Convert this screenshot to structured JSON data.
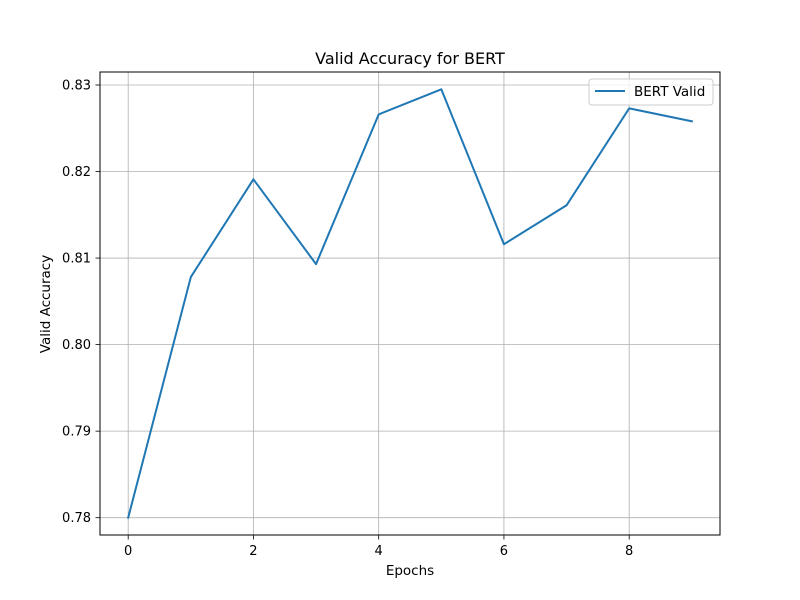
{
  "chart_data": {
    "type": "line",
    "title": "Valid Accuracy for BERT",
    "xlabel": "Epochs",
    "ylabel": "Valid Accuracy",
    "x": [
      0,
      1,
      2,
      3,
      4,
      5,
      6,
      7,
      8,
      9
    ],
    "series": [
      {
        "name": "BERT Valid",
        "color": "#1f77b4",
        "values": [
          0.78,
          0.8078,
          0.8191,
          0.8093,
          0.8266,
          0.8295,
          0.8116,
          0.8161,
          0.8273,
          0.8258
        ]
      }
    ],
    "xlim": [
      -0.45,
      9.45
    ],
    "ylim": [
      0.778,
      0.8315
    ],
    "xticks": [
      0,
      2,
      4,
      6,
      8
    ],
    "xtick_labels": [
      "0",
      "2",
      "4",
      "6",
      "8"
    ],
    "yticks": [
      0.78,
      0.79,
      0.8,
      0.81,
      0.82,
      0.83
    ],
    "ytick_labels": [
      "0.78",
      "0.79",
      "0.80",
      "0.81",
      "0.82",
      "0.83"
    ],
    "grid": true,
    "legend_position": "top-right"
  }
}
